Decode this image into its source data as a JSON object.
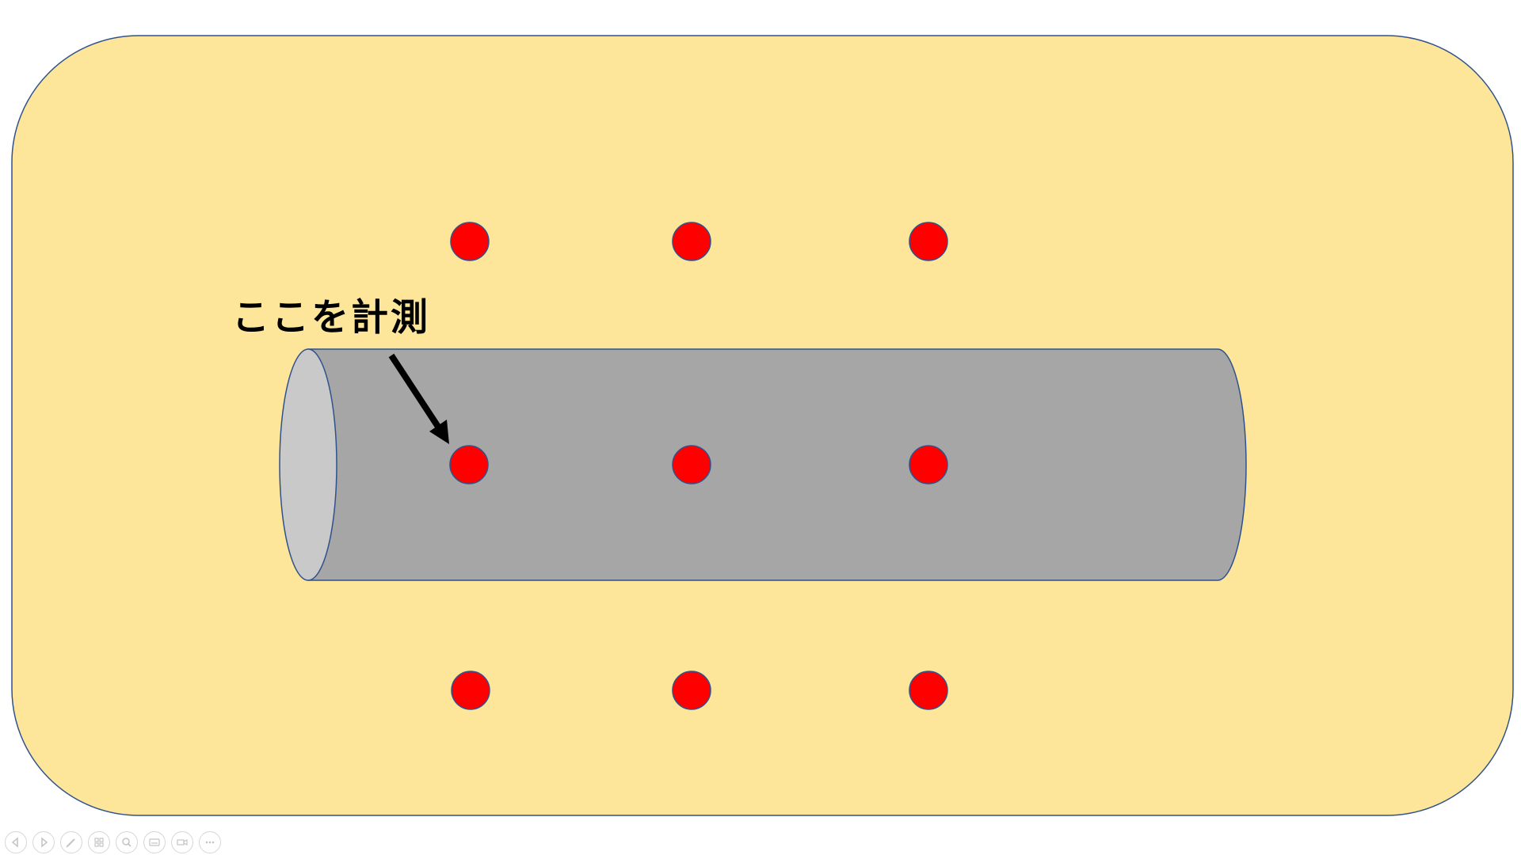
{
  "slide": {
    "annotation": {
      "label": "ここを計測"
    },
    "colors": {
      "background_panel": "#fde59a",
      "panel_border": "#2f528f",
      "cylinder_body": "#a6a6a6",
      "cylinder_end": "#c9c9c9",
      "measurement_point": "#ff0000",
      "arrow": "#000000"
    },
    "points": {
      "rows": 3,
      "columns": 3
    }
  },
  "toolbar": {
    "buttons": [
      {
        "icon": "previous-icon"
      },
      {
        "icon": "next-icon"
      },
      {
        "icon": "pen-icon"
      },
      {
        "icon": "slides-grid-icon"
      },
      {
        "icon": "zoom-icon"
      },
      {
        "icon": "subtitles-icon"
      },
      {
        "icon": "camera-icon"
      },
      {
        "icon": "more-options-icon"
      }
    ]
  }
}
